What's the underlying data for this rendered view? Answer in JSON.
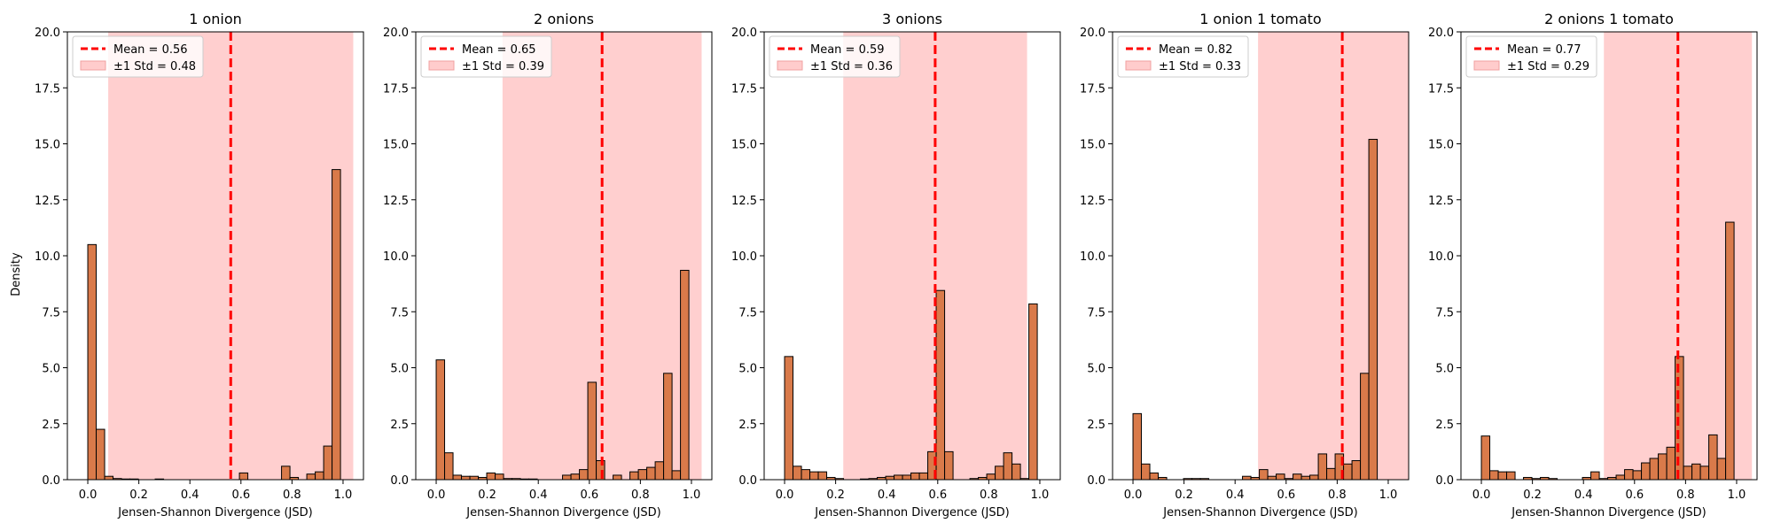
{
  "figure": {
    "ylabel": "Density",
    "x_ticks": [
      "0.0",
      "0.2",
      "0.4",
      "0.6",
      "0.8",
      "1.0"
    ],
    "y_ticks": [
      "0.0",
      "2.5",
      "5.0",
      "7.5",
      "10.0",
      "12.5",
      "15.0",
      "17.5",
      "20.0"
    ],
    "bar_color": "#d97a4a",
    "band_color": "#ffcccc",
    "mean_color": "#ff0000",
    "axes_color": "#000000"
  },
  "chart_data": [
    {
      "type": "bar",
      "title": "1 onion",
      "xlabel": "Jensen-Shannon Divergence (JSD)",
      "ylabel": "Density",
      "xlim": [
        -0.08,
        1.08
      ],
      "ylim": [
        0,
        20
      ],
      "mean": 0.56,
      "std": 0.48,
      "legend": [
        "Mean = 0.56",
        "±1 Std = 0.48"
      ],
      "bin_width": 0.033,
      "bin_starts": [
        0.0,
        0.033,
        0.066,
        0.099,
        0.132,
        0.165,
        0.264,
        0.594,
        0.759,
        0.792,
        0.858,
        0.891,
        0.924,
        0.957
      ],
      "values": [
        10.5,
        2.25,
        0.15,
        0.05,
        0.03,
        0.03,
        0.03,
        0.3,
        0.6,
        0.1,
        0.25,
        0.35,
        1.5,
        13.85
      ]
    },
    {
      "type": "bar",
      "title": "2 onions",
      "xlabel": "Jensen-Shannon Divergence (JSD)",
      "ylabel": "Density",
      "xlim": [
        -0.08,
        1.08
      ],
      "ylim": [
        0,
        20
      ],
      "mean": 0.65,
      "std": 0.39,
      "legend": [
        "Mean = 0.65",
        "±1 Std = 0.39"
      ],
      "bin_width": 0.033,
      "bin_starts": [
        0.0,
        0.033,
        0.066,
        0.099,
        0.132,
        0.165,
        0.198,
        0.231,
        0.264,
        0.297,
        0.33,
        0.363,
        0.495,
        0.528,
        0.561,
        0.594,
        0.627,
        0.693,
        0.759,
        0.792,
        0.825,
        0.858,
        0.891,
        0.924,
        0.957
      ],
      "values": [
        5.35,
        1.2,
        0.2,
        0.15,
        0.15,
        0.1,
        0.3,
        0.25,
        0.05,
        0.05,
        0.03,
        0.03,
        0.2,
        0.25,
        0.45,
        4.35,
        0.85,
        0.2,
        0.35,
        0.45,
        0.55,
        0.8,
        4.75,
        0.4,
        9.35
      ]
    },
    {
      "type": "bar",
      "title": "3 onions",
      "xlabel": "Jensen-Shannon Divergence (JSD)",
      "ylabel": "Density",
      "xlim": [
        -0.08,
        1.08
      ],
      "ylim": [
        0,
        20
      ],
      "mean": 0.59,
      "std": 0.36,
      "legend": [
        "Mean = 0.59",
        "±1 Std = 0.36"
      ],
      "bin_width": 0.033,
      "bin_starts": [
        0.0,
        0.033,
        0.066,
        0.099,
        0.132,
        0.165,
        0.198,
        0.297,
        0.33,
        0.363,
        0.396,
        0.429,
        0.462,
        0.495,
        0.528,
        0.561,
        0.594,
        0.627,
        0.726,
        0.759,
        0.792,
        0.825,
        0.858,
        0.891,
        0.924,
        0.957
      ],
      "values": [
        5.5,
        0.6,
        0.45,
        0.35,
        0.35,
        0.1,
        0.05,
        0.03,
        0.05,
        0.1,
        0.15,
        0.2,
        0.2,
        0.3,
        0.3,
        1.25,
        8.45,
        1.25,
        0.05,
        0.1,
        0.25,
        0.6,
        1.2,
        0.7,
        0.05,
        7.85
      ]
    },
    {
      "type": "bar",
      "title": "1 onion 1 tomato",
      "xlabel": "Jensen-Shannon Divergence (JSD)",
      "ylabel": "Density",
      "xlim": [
        -0.08,
        1.08
      ],
      "ylim": [
        0,
        20
      ],
      "mean": 0.82,
      "std": 0.33,
      "legend": [
        "Mean = 0.82",
        "±1 Std = 0.33"
      ],
      "bin_width": 0.033,
      "bin_starts": [
        0.0,
        0.033,
        0.066,
        0.099,
        0.198,
        0.231,
        0.264,
        0.429,
        0.462,
        0.495,
        0.528,
        0.561,
        0.594,
        0.627,
        0.66,
        0.693,
        0.726,
        0.759,
        0.792,
        0.825,
        0.858,
        0.891,
        0.924,
        0.957
      ],
      "values": [
        2.95,
        0.7,
        0.3,
        0.1,
        0.05,
        0.05,
        0.05,
        0.15,
        0.1,
        0.45,
        0.15,
        0.25,
        0.05,
        0.25,
        0.15,
        0.2,
        1.15,
        0.5,
        1.15,
        0.7,
        0.85,
        4.75,
        15.2,
        0.0
      ]
    },
    {
      "type": "bar",
      "title": "2 onions 1 tomato",
      "xlabel": "Jensen-Shannon Divergence (JSD)",
      "ylabel": "Density",
      "xlim": [
        -0.08,
        1.08
      ],
      "ylim": [
        0,
        20
      ],
      "mean": 0.77,
      "std": 0.29,
      "legend": [
        "Mean = 0.77",
        "±1 Std = 0.29"
      ],
      "bin_width": 0.033,
      "bin_starts": [
        0.0,
        0.033,
        0.066,
        0.099,
        0.165,
        0.198,
        0.231,
        0.264,
        0.396,
        0.429,
        0.462,
        0.495,
        0.528,
        0.561,
        0.594,
        0.627,
        0.66,
        0.693,
        0.726,
        0.759,
        0.792,
        0.825,
        0.858,
        0.891,
        0.924,
        0.957
      ],
      "values": [
        1.95,
        0.4,
        0.35,
        0.35,
        0.1,
        0.05,
        0.1,
        0.05,
        0.1,
        0.35,
        0.05,
        0.1,
        0.2,
        0.45,
        0.4,
        0.75,
        0.95,
        1.15,
        1.45,
        5.5,
        0.6,
        0.7,
        0.6,
        2.0,
        0.95,
        11.5
      ]
    }
  ]
}
